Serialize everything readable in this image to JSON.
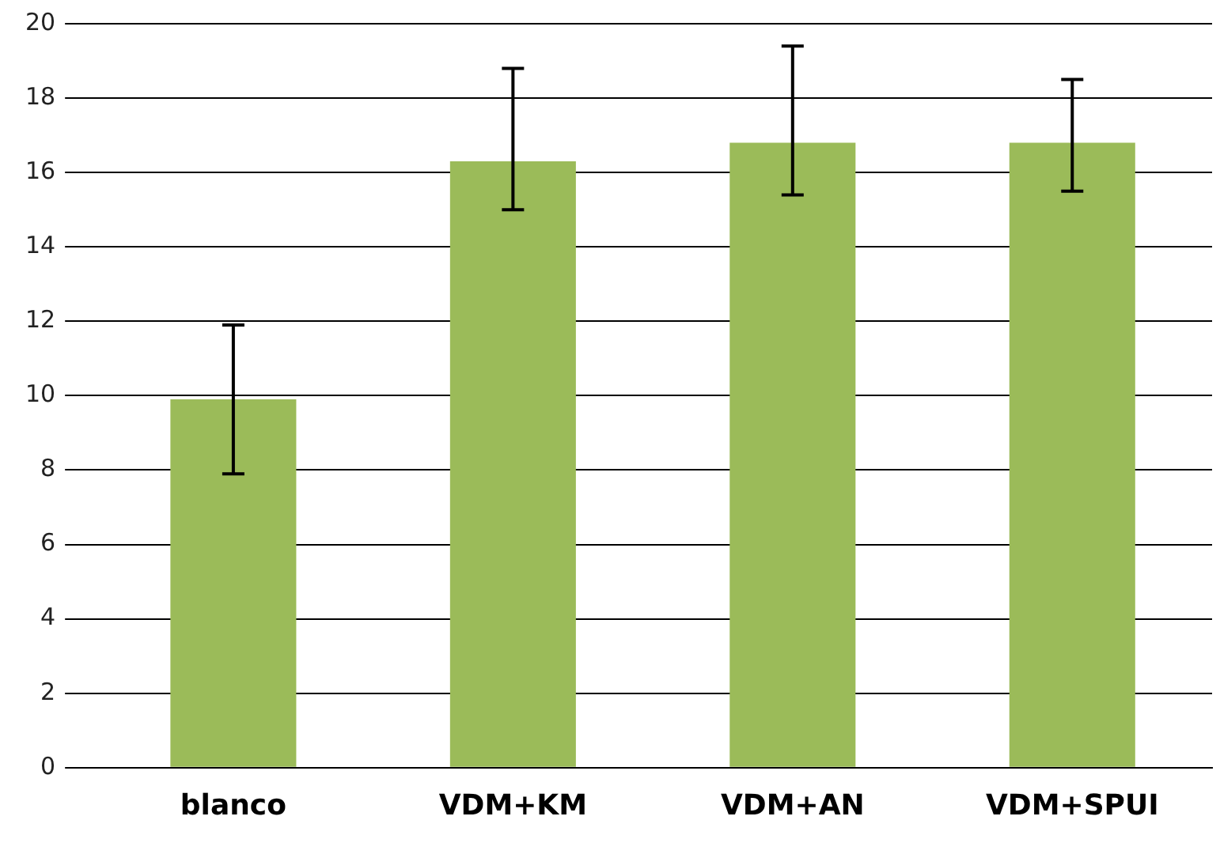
{
  "chart_data": {
    "type": "bar",
    "categories": [
      "blanco",
      "VDM+KM",
      "VDM+AN",
      "VDM+SPUI"
    ],
    "values": [
      9.9,
      16.3,
      16.8,
      16.8
    ],
    "color": "#9bbb59",
    "errors": [
      [
        7.9,
        11.9
      ],
      [
        15.0,
        18.8
      ],
      [
        15.4,
        19.4
      ],
      [
        15.5,
        18.5
      ]
    ],
    "ylim": [
      0,
      20
    ],
    "yticks": [
      0,
      2,
      4,
      6,
      8,
      10,
      12,
      14,
      16,
      18,
      20
    ],
    "grid": "y"
  }
}
